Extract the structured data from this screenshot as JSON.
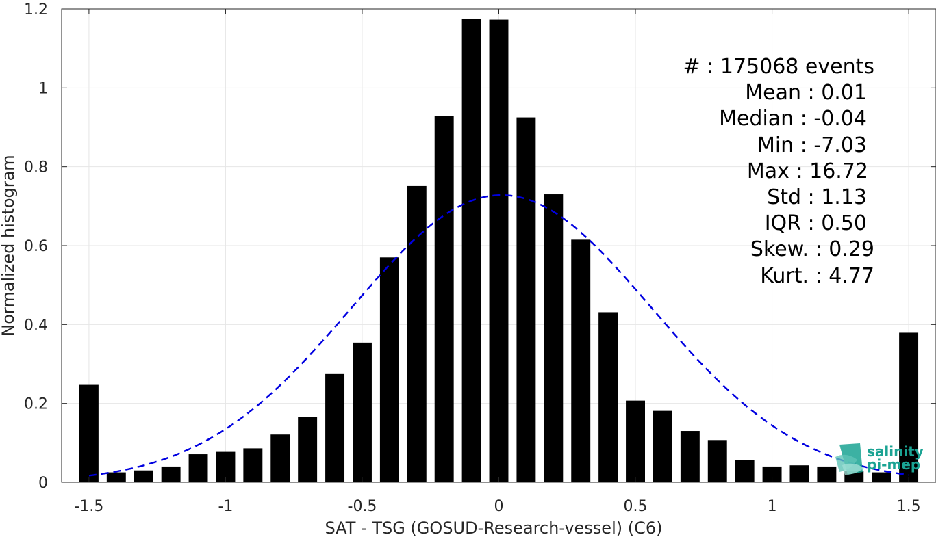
{
  "chart_data": {
    "type": "bar",
    "xlabel": "SAT - TSG (GOSUD-Research-vessel) (C6)",
    "ylabel": "Normalized histogram",
    "xlim": [
      -1.6,
      1.6
    ],
    "ylim": [
      0,
      1.2
    ],
    "x_ticks": [
      -1.5,
      -1,
      -0.5,
      0,
      0.5,
      1,
      1.5
    ],
    "x_tick_labels": [
      "-1.5",
      "-1",
      "-0.5",
      "0",
      "0.5",
      "1",
      "1.5"
    ],
    "y_ticks": [
      0,
      0.2,
      0.4,
      0.6,
      0.8,
      1,
      1.2
    ],
    "y_tick_labels": [
      "0",
      "0.2",
      "0.4",
      "0.6",
      "0.8",
      "1",
      "1.2"
    ],
    "grid": true,
    "bar_width": 0.07,
    "bar_color": "#000000",
    "bins": {
      "x": [
        -1.5,
        -1.4,
        -1.3,
        -1.2,
        -1.1,
        -1.0,
        -0.9,
        -0.8,
        -0.7,
        -0.6,
        -0.5,
        -0.4,
        -0.3,
        -0.2,
        -0.1,
        0.0,
        0.1,
        0.2,
        0.3,
        0.4,
        0.5,
        0.6,
        0.7,
        0.8,
        0.9,
        1.0,
        1.1,
        1.2,
        1.3,
        1.4,
        1.5
      ],
      "values": [
        0.247,
        0.025,
        0.03,
        0.04,
        0.071,
        0.077,
        0.086,
        0.121,
        0.166,
        0.276,
        0.354,
        0.57,
        0.751,
        0.929,
        1.174,
        1.173,
        0.925,
        0.73,
        0.615,
        0.431,
        0.207,
        0.181,
        0.13,
        0.107,
        0.057,
        0.04,
        0.043,
        0.04,
        0.029,
        0.025,
        0.379
      ]
    },
    "fit_curve": {
      "style": "dashed",
      "color": "#0000e0",
      "mean": 0.01,
      "std": 0.55,
      "peak": 0.728
    },
    "stats": [
      "#  : 175068 events",
      "Mean : 0.01",
      "Median : -0.04",
      "Min : -7.03",
      "Max : 16.72",
      "Std : 1.13",
      "IQR : 0.50",
      "Skew. : 0.29",
      "Kurt. : 4.77"
    ]
  },
  "logo": {
    "line1": "salinity",
    "line2": "pi-mep",
    "color": "#1aa393"
  }
}
